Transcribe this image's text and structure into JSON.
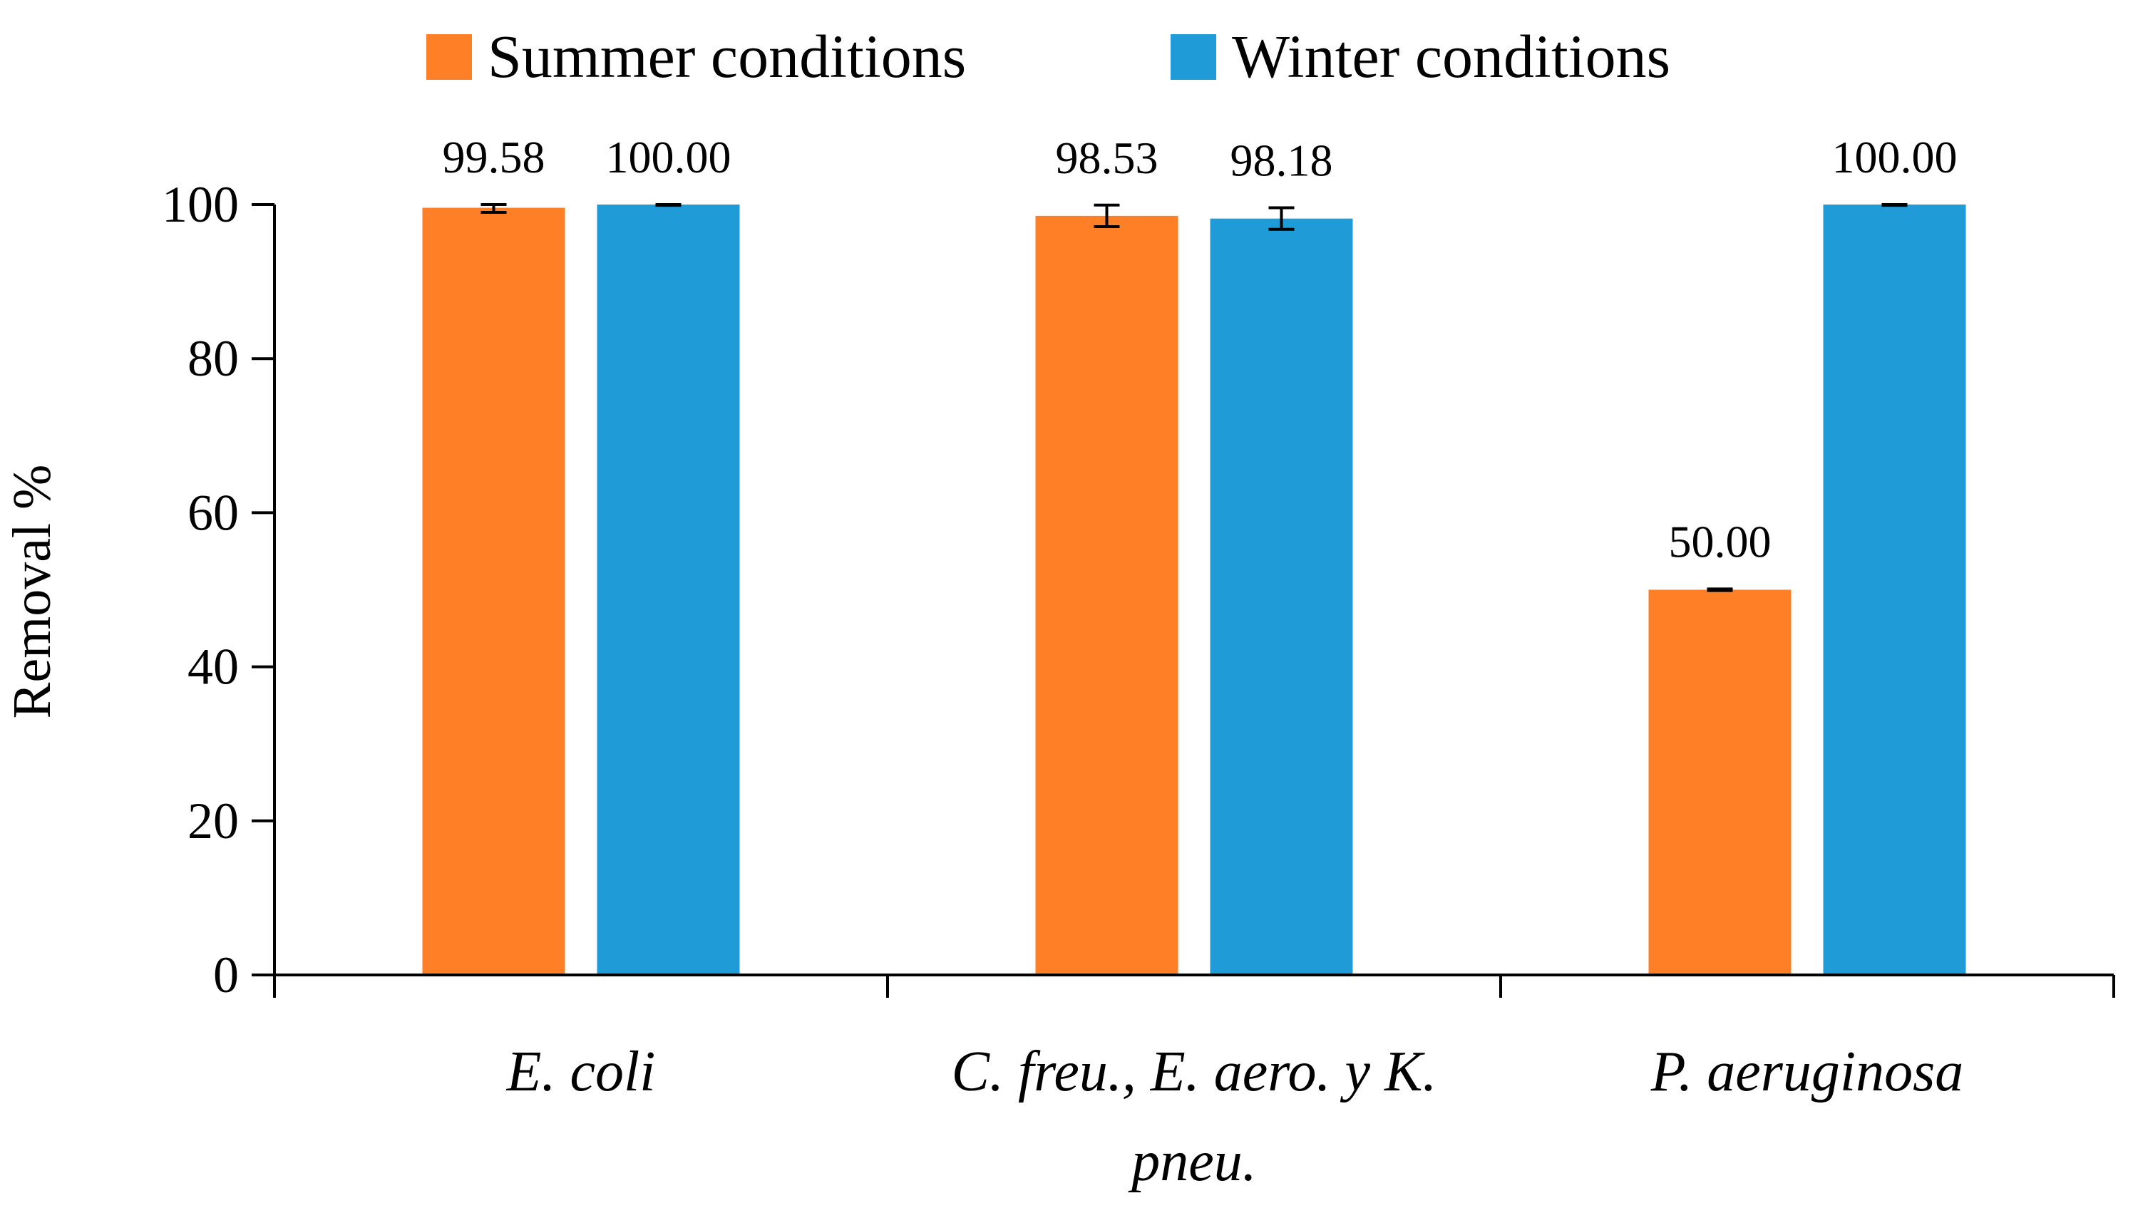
{
  "chart_data": {
    "type": "bar",
    "title": "",
    "xlabel": "",
    "ylabel": "Removal %",
    "ylim": [
      0,
      100
    ],
    "yticks": [
      0,
      20,
      40,
      60,
      80,
      100
    ],
    "grid": false,
    "legend_position": "top-center",
    "categories": [
      "E. coli",
      "C. freu., E. aero. y K. pneu.",
      "P. aeruginosa"
    ],
    "category_label_lines": [
      [
        "E. coli"
      ],
      [
        "C. freu., E. aero. y K.",
        "pneu."
      ],
      [
        "P. aeruginosa"
      ]
    ],
    "series": [
      {
        "name": "Summer conditions",
        "color": "#FF7F27",
        "values": [
          99.58,
          98.53,
          50.0
        ],
        "labels": [
          "99.58",
          "98.53",
          "50.00"
        ],
        "errors": [
          0.6,
          1.4,
          0.1
        ]
      },
      {
        "name": "Winter conditions",
        "color": "#1F9BD7",
        "values": [
          100.0,
          98.18,
          100.0
        ],
        "labels": [
          "100.00",
          "98.18",
          "100.00"
        ],
        "errors": [
          0.1,
          1.4,
          0.1
        ]
      }
    ]
  }
}
